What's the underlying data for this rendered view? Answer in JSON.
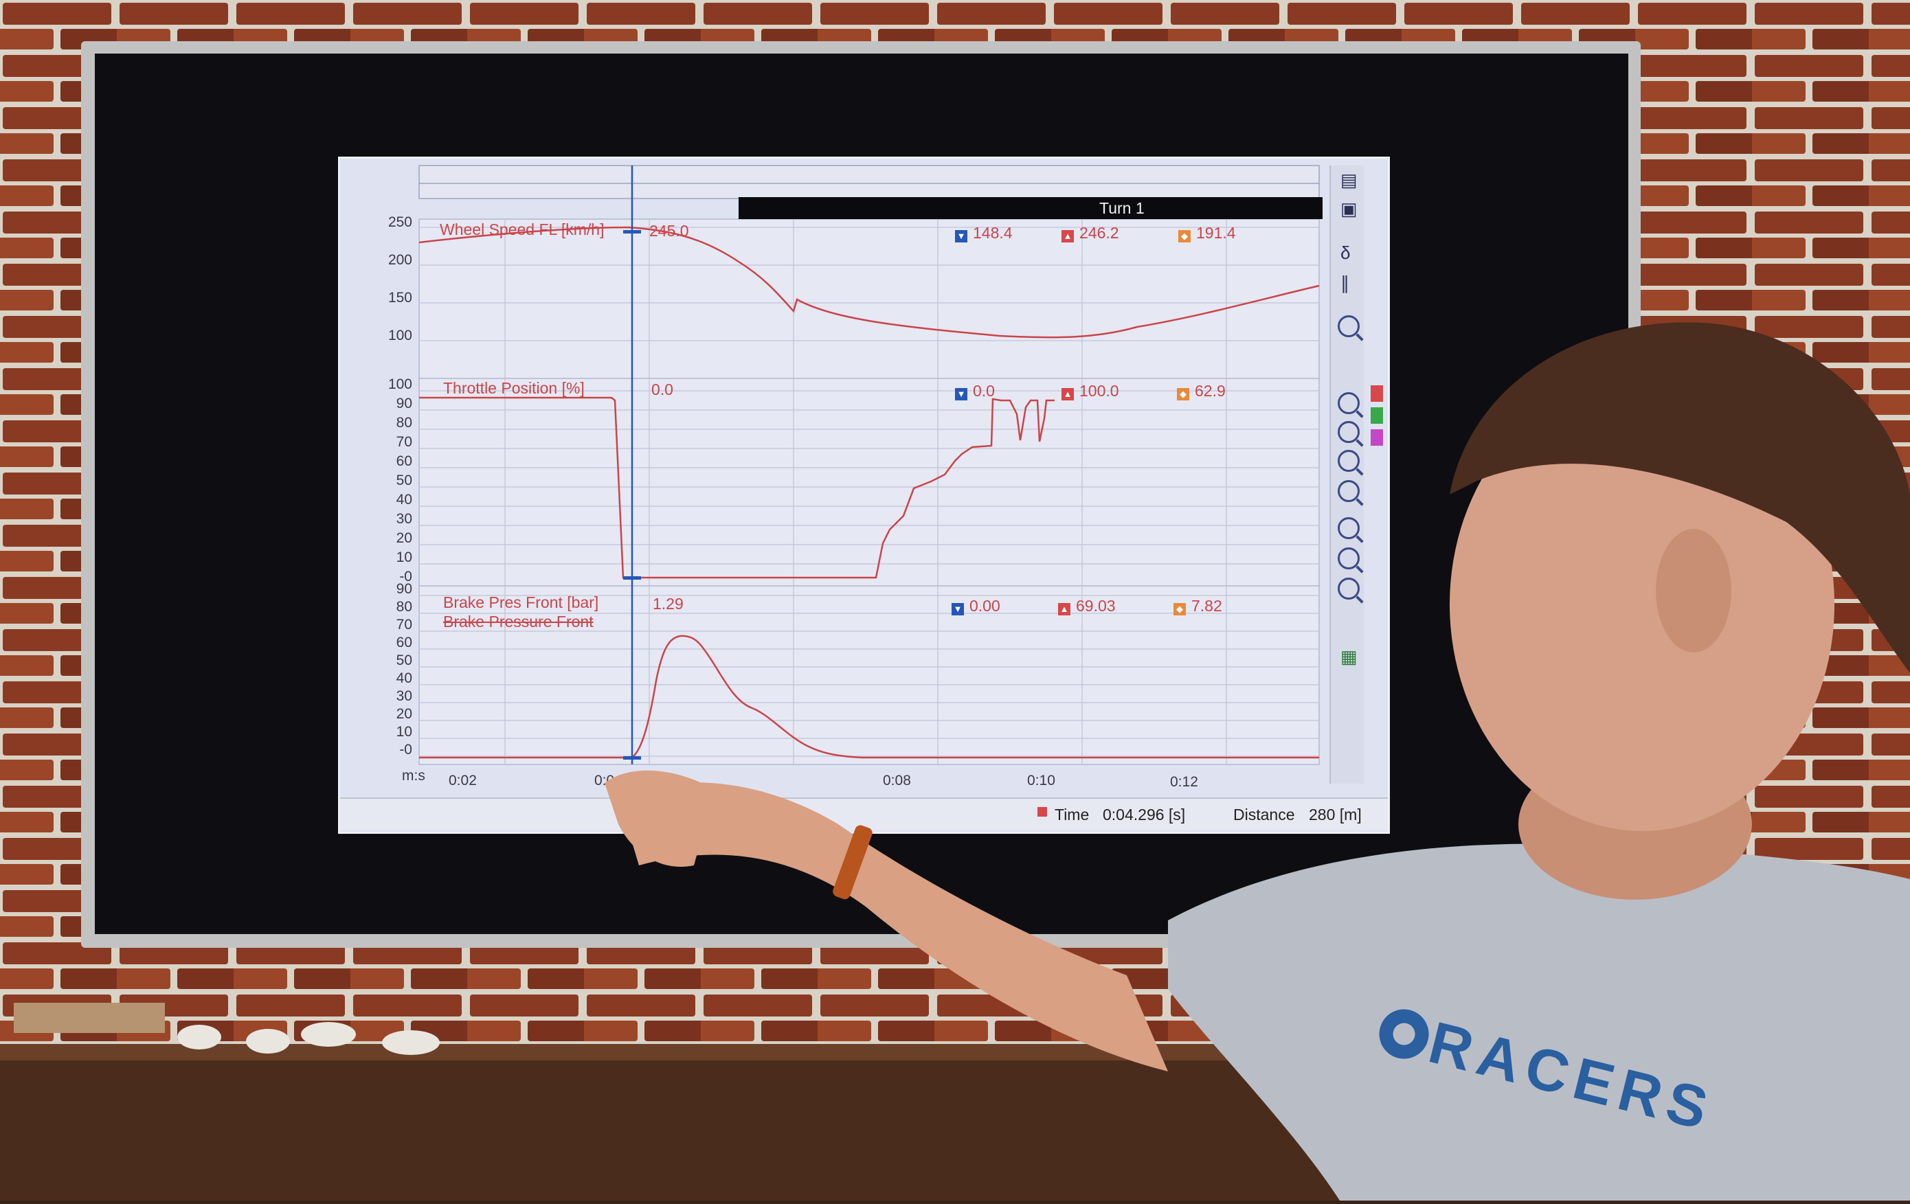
{
  "video_frame": {
    "section_bar": "Turn 1",
    "panels": [
      {
        "channel_label": "Wheel Speed FL [km/h]",
        "cursor_value": "245.0",
        "min_value": "148.4",
        "max_value": "246.2",
        "avg_value": "191.4",
        "y_ticks": [
          "250",
          "200",
          "150",
          "100"
        ]
      },
      {
        "channel_label": "Throttle Position [%]",
        "cursor_value": "0.0",
        "min_value": "0.0",
        "max_value": "100.0",
        "avg_value": "62.9",
        "y_ticks": [
          "100",
          "90",
          "80",
          "70",
          "60",
          "50",
          "40",
          "30",
          "20",
          "10",
          "-0"
        ]
      },
      {
        "channel_label": "Brake Pres Front [bar]",
        "channel_sub_label": "Brake Pressure Front",
        "cursor_value": "1.29",
        "min_value": "0.00",
        "max_value": "69.03",
        "avg_value": "7.82",
        "y_ticks": [
          "90",
          "80",
          "70",
          "60",
          "50",
          "40",
          "30",
          "20",
          "10",
          "-0"
        ]
      }
    ],
    "x_axis": {
      "unit_label": "m:s",
      "ticks": [
        "0:02",
        "0:04",
        "0:08",
        "0:10",
        "0:12"
      ]
    },
    "status_bar": {
      "time_label": "Time",
      "time_value": "0:04.296 [s]",
      "distance_label": "Distance",
      "distance_value": "280 [m]"
    },
    "toolbar_icons": [
      "export-icon",
      "window-icon",
      "delta-icon",
      "pause-icon",
      "zoom-in-icon",
      "zoom-out-icon",
      "zoom-fit-icon",
      "zoom-reset-icon",
      "zoom-x-in-icon",
      "zoom-x-out-icon",
      "zoom-x-fit-icon",
      "channel-list-icon"
    ],
    "series_colors": {
      "trace": "#c9454a",
      "cursor": "#2657b8",
      "min_badge": "#2657b8",
      "max_badge": "#d8474a",
      "avg_badge": "#e88a3a"
    },
    "shirt_print": "RACERS"
  }
}
